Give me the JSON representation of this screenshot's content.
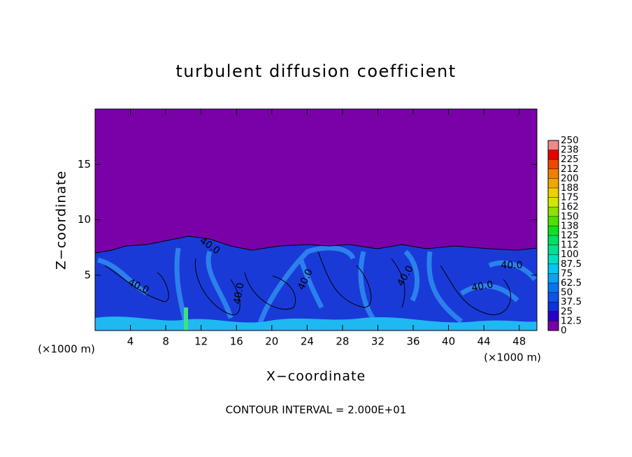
{
  "chart_data": {
    "type": "contour",
    "title": "turbulent diffusion coefficient",
    "x_label": "X−coordinate",
    "y_label": "Z−coordinate",
    "unit_label": "(×1000 m)",
    "note": "CONTOUR INTERVAL = 2.000E+01",
    "xlim": [
      0,
      50
    ],
    "ylim": [
      0,
      20
    ],
    "xticks": [
      4,
      8,
      12,
      16,
      20,
      24,
      28,
      32,
      36,
      40,
      44,
      48
    ],
    "yticks": [
      5,
      10,
      15
    ],
    "contour_labels": [
      "40.0",
      "40.0",
      "40.0",
      "40.0",
      "40.0",
      "40.0",
      "40.0"
    ],
    "colorbar": {
      "ticks": [
        0,
        12.5,
        25,
        37.5,
        50,
        62.5,
        75,
        87.5,
        100,
        112,
        125,
        138,
        150,
        162,
        175,
        188,
        200,
        212,
        225,
        238,
        250
      ],
      "colors": [
        "#7a00a8",
        "#2a00c8",
        "#1030dc",
        "#1050ec",
        "#0a74f0",
        "#10a0f0",
        "#00c8f0",
        "#00e0c0",
        "#00e090",
        "#00e060",
        "#10e020",
        "#50e000",
        "#90e000",
        "#d0e800",
        "#f0d000",
        "#f0a800",
        "#f08000",
        "#f04800",
        "#e80000",
        "#f08888"
      ]
    }
  }
}
